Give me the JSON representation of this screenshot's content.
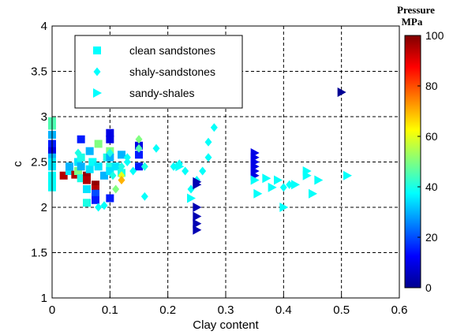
{
  "chart_data": {
    "type": "scatter",
    "xlabel": "Clay content",
    "ylabel": "c",
    "xlim": [
      0,
      0.6
    ],
    "ylim": [
      1,
      4
    ],
    "xticks": [
      "0",
      "0.1",
      "0.2",
      "0.3",
      "0.4",
      "0.5",
      "0.6"
    ],
    "yticks": [
      "1",
      "1.5",
      "2",
      "2.5",
      "3",
      "3.5",
      "4"
    ],
    "grid": true,
    "grid_style": "dashed",
    "legend_position": "top-left",
    "colorbar": {
      "title_line1": "Pressure",
      "title_line2": "MPa",
      "range": [
        0,
        100
      ],
      "ticks": [
        "0",
        "20",
        "40",
        "60",
        "80",
        "100"
      ],
      "colormap": "jet"
    },
    "series": [
      {
        "name": "clean sandstones",
        "marker": "square",
        "points": [
          {
            "x": 0.0,
            "y": 2.95,
            "p": 45
          },
          {
            "x": 0.0,
            "y": 2.9,
            "p": 45
          },
          {
            "x": 0.0,
            "y": 2.8,
            "p": 30
          },
          {
            "x": 0.0,
            "y": 2.7,
            "p": 15
          },
          {
            "x": 0.0,
            "y": 2.62,
            "p": 10
          },
          {
            "x": 0.0,
            "y": 2.55,
            "p": 30
          },
          {
            "x": 0.0,
            "y": 2.5,
            "p": 35
          },
          {
            "x": 0.0,
            "y": 2.45,
            "p": 35
          },
          {
            "x": 0.0,
            "y": 2.35,
            "p": 38
          },
          {
            "x": 0.0,
            "y": 2.28,
            "p": 38
          },
          {
            "x": 0.0,
            "y": 2.22,
            "p": 38
          },
          {
            "x": 0.02,
            "y": 2.35,
            "p": 95
          },
          {
            "x": 0.03,
            "y": 2.4,
            "p": 35
          },
          {
            "x": 0.03,
            "y": 2.45,
            "p": 30
          },
          {
            "x": 0.04,
            "y": 2.36,
            "p": 95
          },
          {
            "x": 0.045,
            "y": 2.5,
            "p": 35
          },
          {
            "x": 0.045,
            "y": 2.4,
            "p": 50
          },
          {
            "x": 0.05,
            "y": 2.75,
            "p": 15
          },
          {
            "x": 0.05,
            "y": 2.55,
            "p": 40
          },
          {
            "x": 0.05,
            "y": 2.45,
            "p": 30
          },
          {
            "x": 0.05,
            "y": 2.32,
            "p": 40
          },
          {
            "x": 0.06,
            "y": 2.35,
            "p": 98
          },
          {
            "x": 0.06,
            "y": 2.3,
            "p": 95
          },
          {
            "x": 0.06,
            "y": 2.2,
            "p": 35
          },
          {
            "x": 0.06,
            "y": 2.05,
            "p": 40
          },
          {
            "x": 0.065,
            "y": 2.42,
            "p": 35
          },
          {
            "x": 0.065,
            "y": 2.62,
            "p": 30
          },
          {
            "x": 0.07,
            "y": 2.5,
            "p": 38
          },
          {
            "x": 0.075,
            "y": 2.25,
            "p": 98
          },
          {
            "x": 0.075,
            "y": 2.2,
            "p": 95
          },
          {
            "x": 0.075,
            "y": 2.15,
            "p": 20
          },
          {
            "x": 0.075,
            "y": 2.08,
            "p": 15
          },
          {
            "x": 0.08,
            "y": 2.45,
            "p": 35
          },
          {
            "x": 0.08,
            "y": 2.7,
            "p": 50
          },
          {
            "x": 0.09,
            "y": 2.35,
            "p": 30
          },
          {
            "x": 0.095,
            "y": 2.55,
            "p": 40
          },
          {
            "x": 0.1,
            "y": 2.82,
            "p": 10
          },
          {
            "x": 0.1,
            "y": 2.75,
            "p": 10
          },
          {
            "x": 0.1,
            "y": 2.62,
            "p": 50
          },
          {
            "x": 0.1,
            "y": 2.55,
            "p": 30
          },
          {
            "x": 0.1,
            "y": 2.45,
            "p": 40
          },
          {
            "x": 0.1,
            "y": 2.4,
            "p": 35
          },
          {
            "x": 0.1,
            "y": 2.1,
            "p": 15
          },
          {
            "x": 0.11,
            "y": 2.45,
            "p": 35
          },
          {
            "x": 0.12,
            "y": 2.38,
            "p": 40
          },
          {
            "x": 0.12,
            "y": 2.58,
            "p": 30
          },
          {
            "x": 0.15,
            "y": 2.68,
            "p": 10
          },
          {
            "x": 0.15,
            "y": 2.58,
            "p": 15
          },
          {
            "x": 0.15,
            "y": 2.45,
            "p": 15
          }
        ]
      },
      {
        "name": "shaly-sandstones",
        "marker": "diamond",
        "points": [
          {
            "x": 0.045,
            "y": 2.6,
            "p": 40
          },
          {
            "x": 0.08,
            "y": 2.0,
            "p": 38
          },
          {
            "x": 0.09,
            "y": 2.02,
            "p": 38
          },
          {
            "x": 0.1,
            "y": 2.6,
            "p": 40
          },
          {
            "x": 0.105,
            "y": 2.35,
            "p": 40
          },
          {
            "x": 0.11,
            "y": 2.2,
            "p": 50
          },
          {
            "x": 0.12,
            "y": 2.35,
            "p": 60
          },
          {
            "x": 0.12,
            "y": 2.3,
            "p": 70
          },
          {
            "x": 0.12,
            "y": 2.45,
            "p": 40
          },
          {
            "x": 0.13,
            "y": 2.5,
            "p": 38
          },
          {
            "x": 0.13,
            "y": 2.55,
            "p": 38
          },
          {
            "x": 0.14,
            "y": 2.4,
            "p": 38
          },
          {
            "x": 0.15,
            "y": 2.75,
            "p": 50
          },
          {
            "x": 0.15,
            "y": 2.65,
            "p": 45
          },
          {
            "x": 0.16,
            "y": 2.45,
            "p": 40
          },
          {
            "x": 0.16,
            "y": 2.12,
            "p": 38
          },
          {
            "x": 0.18,
            "y": 2.65,
            "p": 38
          },
          {
            "x": 0.21,
            "y": 2.45,
            "p": 38
          },
          {
            "x": 0.22,
            "y": 2.48,
            "p": 38
          },
          {
            "x": 0.23,
            "y": 2.4,
            "p": 38
          },
          {
            "x": 0.24,
            "y": 2.2,
            "p": 38
          },
          {
            "x": 0.25,
            "y": 2.3,
            "p": 38
          },
          {
            "x": 0.26,
            "y": 2.4,
            "p": 38
          },
          {
            "x": 0.27,
            "y": 2.55,
            "p": 38
          },
          {
            "x": 0.27,
            "y": 2.72,
            "p": 38
          },
          {
            "x": 0.28,
            "y": 2.88,
            "p": 38
          },
          {
            "x": 0.4,
            "y": 2.22,
            "p": 38
          },
          {
            "x": 0.41,
            "y": 2.25,
            "p": 38
          }
        ]
      },
      {
        "name": "sandy-shales",
        "marker": "triangle-right",
        "points": [
          {
            "x": 0.22,
            "y": 2.45,
            "p": 38
          },
          {
            "x": 0.24,
            "y": 2.1,
            "p": 38
          },
          {
            "x": 0.25,
            "y": 2.28,
            "p": 5
          },
          {
            "x": 0.25,
            "y": 2.25,
            "p": 5
          },
          {
            "x": 0.25,
            "y": 2.0,
            "p": 5
          },
          {
            "x": 0.25,
            "y": 1.9,
            "p": 5
          },
          {
            "x": 0.25,
            "y": 1.82,
            "p": 5
          },
          {
            "x": 0.25,
            "y": 1.75,
            "p": 5
          },
          {
            "x": 0.35,
            "y": 2.6,
            "p": 10
          },
          {
            "x": 0.35,
            "y": 2.55,
            "p": 10
          },
          {
            "x": 0.35,
            "y": 2.5,
            "p": 10
          },
          {
            "x": 0.35,
            "y": 2.45,
            "p": 10
          },
          {
            "x": 0.35,
            "y": 2.4,
            "p": 10
          },
          {
            "x": 0.35,
            "y": 2.35,
            "p": 10
          },
          {
            "x": 0.35,
            "y": 2.3,
            "p": 38
          },
          {
            "x": 0.355,
            "y": 2.15,
            "p": 38
          },
          {
            "x": 0.37,
            "y": 2.32,
            "p": 38
          },
          {
            "x": 0.38,
            "y": 2.22,
            "p": 38
          },
          {
            "x": 0.39,
            "y": 2.3,
            "p": 38
          },
          {
            "x": 0.4,
            "y": 2.0,
            "p": 38
          },
          {
            "x": 0.42,
            "y": 2.25,
            "p": 38
          },
          {
            "x": 0.44,
            "y": 2.4,
            "p": 38
          },
          {
            "x": 0.44,
            "y": 2.35,
            "p": 38
          },
          {
            "x": 0.45,
            "y": 2.15,
            "p": 38
          },
          {
            "x": 0.46,
            "y": 2.3,
            "p": 38
          },
          {
            "x": 0.5,
            "y": 3.27,
            "p": 2
          },
          {
            "x": 0.51,
            "y": 2.35,
            "p": 38
          }
        ]
      }
    ]
  }
}
